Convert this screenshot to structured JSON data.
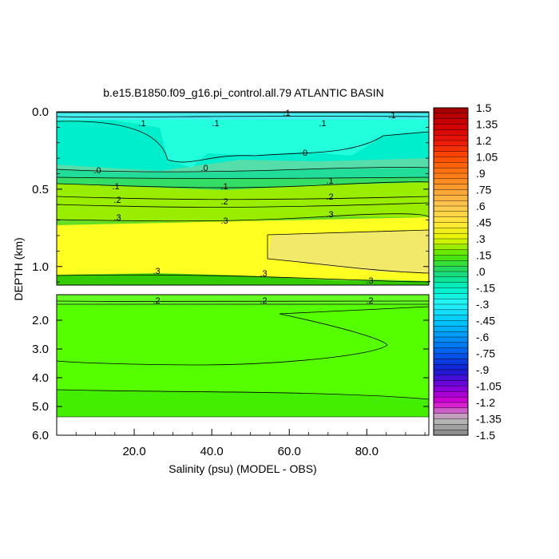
{
  "chart_data": {
    "type": "heatmap",
    "title": "b.e15.B1850.f09_g16.pi_control.all.79 ATLANTIC BASIN",
    "xlabel": "Salinity (psu) (MODEL - OBS)",
    "ylabel": "DEPTH (km)",
    "x_ticks": [
      "20.0",
      "40.0",
      "60.0",
      "80.0"
    ],
    "upper_panel": {
      "ylim": [
        0.0,
        1.12
      ],
      "y_ticks": [
        "0.0",
        "0.5",
        "1.0"
      ]
    },
    "lower_panel": {
      "ylim": [
        1.12,
        6.0
      ],
      "y_ticks": [
        "2.0",
        "3.0",
        "4.0",
        "5.0",
        "6.0"
      ]
    },
    "contour_labels_upper": [
      ".1",
      ".1",
      ".1",
      ".1",
      ".1",
      "0",
      ".0",
      ".0",
      ".1",
      ".1",
      ".1",
      ".2",
      ".2",
      ".2",
      ".3",
      ".3",
      ".3",
      ".3",
      ".3",
      ".3"
    ],
    "contour_labels_lower": [
      ".2",
      ".2",
      ".2"
    ],
    "colorbar": {
      "labels": [
        "1.5",
        "1.35",
        "1.2",
        "1.05",
        ".9",
        ".75",
        ".6",
        ".45",
        ".3",
        ".15",
        ".0",
        "-.15",
        "-.3",
        "-.45",
        "-.6",
        "-.75",
        "-.9",
        "-1.05",
        "-1.2",
        "-1.35",
        "-1.5"
      ],
      "range": [
        -1.5,
        1.5
      ],
      "step": 0.05
    }
  }
}
